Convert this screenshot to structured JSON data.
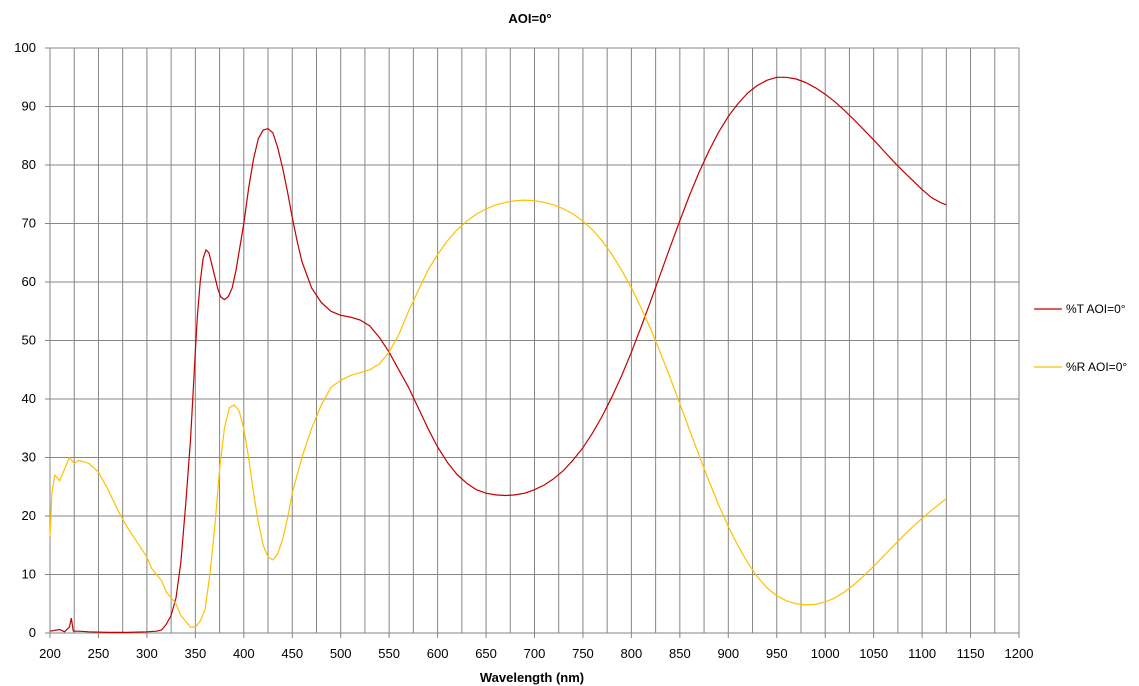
{
  "chart_data": {
    "type": "line",
    "title": "AOI=0°",
    "xlabel": "Wavelength (nm)",
    "ylabel": "",
    "xlim": [
      200,
      1200
    ],
    "ylim": [
      0,
      100
    ],
    "x_ticks": [
      200,
      250,
      300,
      350,
      400,
      450,
      500,
      550,
      600,
      650,
      700,
      750,
      800,
      850,
      900,
      950,
      1000,
      1050,
      1100,
      1150,
      1200
    ],
    "y_ticks": [
      0,
      10,
      20,
      30,
      40,
      50,
      60,
      70,
      80,
      90,
      100
    ],
    "grid": true,
    "minor_x_grid_step": 25,
    "legend_position": "right",
    "series": [
      {
        "name": "%T AOI=0°",
        "color": "#C00000",
        "points": [
          [
            200,
            0.3
          ],
          [
            210,
            0.6
          ],
          [
            215,
            0.2
          ],
          [
            220,
            1.0
          ],
          [
            222,
            2.5
          ],
          [
            224,
            0.3
          ],
          [
            230,
            0.3
          ],
          [
            240,
            0.2
          ],
          [
            260,
            0.1
          ],
          [
            280,
            0.1
          ],
          [
            300,
            0.2
          ],
          [
            310,
            0.3
          ],
          [
            315,
            0.5
          ],
          [
            320,
            1.5
          ],
          [
            325,
            3
          ],
          [
            330,
            6
          ],
          [
            335,
            12
          ],
          [
            340,
            22
          ],
          [
            345,
            33
          ],
          [
            348,
            42
          ],
          [
            350,
            48
          ],
          [
            352,
            54
          ],
          [
            355,
            60
          ],
          [
            358,
            64
          ],
          [
            361,
            65.5
          ],
          [
            364,
            65
          ],
          [
            367,
            63
          ],
          [
            370,
            61
          ],
          [
            373,
            59
          ],
          [
            376,
            57.5
          ],
          [
            380,
            57
          ],
          [
            384,
            57.5
          ],
          [
            388,
            59
          ],
          [
            392,
            62
          ],
          [
            396,
            66
          ],
          [
            400,
            70
          ],
          [
            405,
            76
          ],
          [
            410,
            81
          ],
          [
            415,
            84.5
          ],
          [
            420,
            86
          ],
          [
            425,
            86.2
          ],
          [
            430,
            85.5
          ],
          [
            435,
            83
          ],
          [
            440,
            79.5
          ],
          [
            445,
            75.5
          ],
          [
            450,
            71
          ],
          [
            455,
            67
          ],
          [
            460,
            63.5
          ],
          [
            470,
            59
          ],
          [
            480,
            56.5
          ],
          [
            490,
            55
          ],
          [
            500,
            54.3
          ],
          [
            510,
            54
          ],
          [
            520,
            53.5
          ],
          [
            530,
            52.5
          ],
          [
            540,
            50.5
          ],
          [
            550,
            48
          ],
          [
            560,
            45
          ],
          [
            570,
            42
          ],
          [
            580,
            38.5
          ],
          [
            590,
            35
          ],
          [
            600,
            31.8
          ],
          [
            610,
            29.2
          ],
          [
            620,
            27.1
          ],
          [
            630,
            25.6
          ],
          [
            640,
            24.5
          ],
          [
            650,
            23.9
          ],
          [
            660,
            23.6
          ],
          [
            670,
            23.5
          ],
          [
            680,
            23.6
          ],
          [
            690,
            23.9
          ],
          [
            700,
            24.5
          ],
          [
            710,
            25.3
          ],
          [
            720,
            26.4
          ],
          [
            730,
            27.8
          ],
          [
            740,
            29.6
          ],
          [
            750,
            31.7
          ],
          [
            760,
            34.2
          ],
          [
            770,
            37.1
          ],
          [
            780,
            40.4
          ],
          [
            790,
            44
          ],
          [
            800,
            48
          ],
          [
            810,
            52.3
          ],
          [
            820,
            56.8
          ],
          [
            830,
            61.4
          ],
          [
            840,
            66
          ],
          [
            850,
            70.5
          ],
          [
            860,
            74.8
          ],
          [
            870,
            78.8
          ],
          [
            880,
            82.4
          ],
          [
            890,
            85.6
          ],
          [
            900,
            88.3
          ],
          [
            910,
            90.5
          ],
          [
            920,
            92.3
          ],
          [
            930,
            93.6
          ],
          [
            940,
            94.5
          ],
          [
            950,
            95
          ],
          [
            960,
            95
          ],
          [
            970,
            94.7
          ],
          [
            980,
            94.1
          ],
          [
            990,
            93.2
          ],
          [
            1000,
            92.1
          ],
          [
            1010,
            90.8
          ],
          [
            1020,
            89.3
          ],
          [
            1030,
            87.7
          ],
          [
            1040,
            86
          ],
          [
            1050,
            84.3
          ],
          [
            1060,
            82.5
          ],
          [
            1070,
            80.7
          ],
          [
            1080,
            79
          ],
          [
            1090,
            77.4
          ],
          [
            1100,
            75.8
          ],
          [
            1110,
            74.4
          ],
          [
            1120,
            73.5
          ],
          [
            1125,
            73.2
          ]
        ]
      },
      {
        "name": "%R AOI=0°",
        "color": "#FFC000",
        "points": [
          [
            200,
            16.5
          ],
          [
            202,
            24
          ],
          [
            205,
            27
          ],
          [
            210,
            26
          ],
          [
            215,
            28
          ],
          [
            220,
            30
          ],
          [
            225,
            29
          ],
          [
            230,
            29.5
          ],
          [
            240,
            29
          ],
          [
            250,
            27.5
          ],
          [
            260,
            24.5
          ],
          [
            270,
            21
          ],
          [
            280,
            18
          ],
          [
            290,
            15.5
          ],
          [
            300,
            13
          ],
          [
            305,
            11
          ],
          [
            310,
            10
          ],
          [
            315,
            9
          ],
          [
            320,
            7
          ],
          [
            325,
            6
          ],
          [
            330,
            5
          ],
          [
            335,
            3
          ],
          [
            340,
            2
          ],
          [
            345,
            1
          ],
          [
            350,
            1
          ],
          [
            355,
            2
          ],
          [
            360,
            4
          ],
          [
            365,
            10
          ],
          [
            370,
            18
          ],
          [
            375,
            28
          ],
          [
            380,
            35
          ],
          [
            385,
            38.5
          ],
          [
            390,
            39
          ],
          [
            395,
            38
          ],
          [
            400,
            35
          ],
          [
            405,
            30
          ],
          [
            410,
            24
          ],
          [
            415,
            19
          ],
          [
            420,
            15
          ],
          [
            425,
            13
          ],
          [
            430,
            12.5
          ],
          [
            435,
            13.5
          ],
          [
            440,
            16
          ],
          [
            445,
            19.5
          ],
          [
            450,
            24
          ],
          [
            460,
            30
          ],
          [
            470,
            35
          ],
          [
            480,
            39
          ],
          [
            490,
            42
          ],
          [
            500,
            43.2
          ],
          [
            510,
            44
          ],
          [
            520,
            44.5
          ],
          [
            530,
            45
          ],
          [
            540,
            46
          ],
          [
            550,
            48
          ],
          [
            560,
            51
          ],
          [
            570,
            55
          ],
          [
            580,
            58.5
          ],
          [
            590,
            62
          ],
          [
            600,
            64.7
          ],
          [
            610,
            67
          ],
          [
            620,
            68.9
          ],
          [
            630,
            70.4
          ],
          [
            640,
            71.6
          ],
          [
            650,
            72.5
          ],
          [
            660,
            73.2
          ],
          [
            670,
            73.6
          ],
          [
            680,
            73.9
          ],
          [
            690,
            74
          ],
          [
            700,
            73.9
          ],
          [
            710,
            73.6
          ],
          [
            720,
            73.2
          ],
          [
            730,
            72.5
          ],
          [
            740,
            71.6
          ],
          [
            750,
            70.4
          ],
          [
            760,
            68.9
          ],
          [
            770,
            67
          ],
          [
            780,
            64.7
          ],
          [
            790,
            62
          ],
          [
            800,
            59
          ],
          [
            810,
            55.6
          ],
          [
            820,
            51.9
          ],
          [
            830,
            47.9
          ],
          [
            840,
            43.6
          ],
          [
            850,
            39.2
          ],
          [
            860,
            34.7
          ],
          [
            870,
            30.3
          ],
          [
            880,
            26
          ],
          [
            890,
            21.9
          ],
          [
            900,
            18.2
          ],
          [
            910,
            14.9
          ],
          [
            920,
            12
          ],
          [
            930,
            9.6
          ],
          [
            940,
            7.7
          ],
          [
            950,
            6.4
          ],
          [
            960,
            5.5
          ],
          [
            970,
            5
          ],
          [
            980,
            4.8
          ],
          [
            990,
            4.9
          ],
          [
            1000,
            5.3
          ],
          [
            1010,
            6
          ],
          [
            1020,
            7
          ],
          [
            1030,
            8.3
          ],
          [
            1040,
            9.8
          ],
          [
            1050,
            11.4
          ],
          [
            1060,
            13.1
          ],
          [
            1070,
            14.8
          ],
          [
            1080,
            16.5
          ],
          [
            1090,
            18.1
          ],
          [
            1100,
            19.6
          ],
          [
            1110,
            21
          ],
          [
            1120,
            22.3
          ],
          [
            1125,
            23
          ]
        ]
      }
    ]
  }
}
